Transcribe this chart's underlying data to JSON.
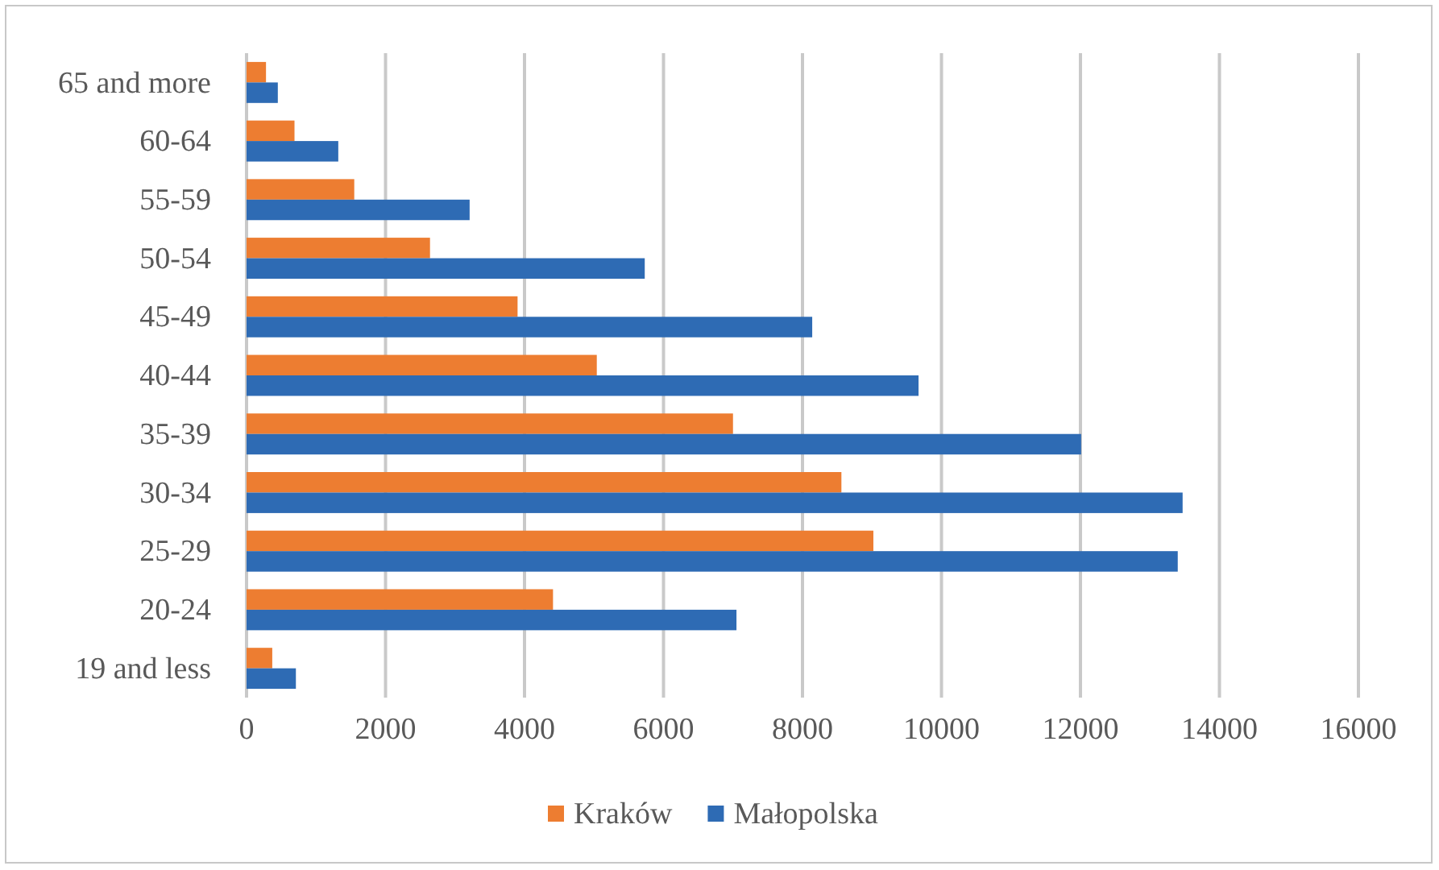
{
  "chart_data": {
    "type": "bar",
    "orientation": "horizontal",
    "categories": [
      "65 and more",
      "60-64",
      "55-59",
      "50-54",
      "45-49",
      "40-44",
      "35-39",
      "30-34",
      "25-29",
      "20-24",
      "19 and less"
    ],
    "series": [
      {
        "name": "Kraków",
        "color": "#ed7d31",
        "values": [
          280,
          690,
          1550,
          2640,
          3900,
          5040,
          7000,
          8560,
          9020,
          4410,
          370
        ]
      },
      {
        "name": "Małopolska",
        "color": "#2e6bb4",
        "values": [
          450,
          1320,
          3210,
          5730,
          8140,
          9670,
          12010,
          13470,
          13400,
          7050,
          710
        ]
      }
    ],
    "xlim": [
      0,
      16000
    ],
    "xticks": [
      0,
      2000,
      4000,
      6000,
      8000,
      10000,
      12000,
      14000,
      16000
    ],
    "grid": "x",
    "legend": "bottom"
  }
}
